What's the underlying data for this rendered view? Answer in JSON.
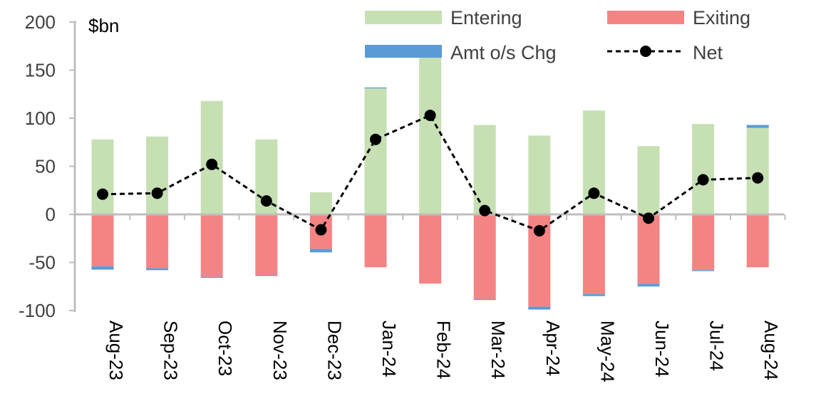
{
  "chart_data": {
    "type": "bar",
    "unit_label": "$bn",
    "ylim": [
      -100,
      200
    ],
    "yticks": [
      -100,
      -50,
      0,
      50,
      100,
      150,
      200
    ],
    "grid": false,
    "legend_position": "top-right",
    "categories": [
      "Aug-23",
      "Sep-23",
      "Oct-23",
      "Nov-23",
      "Dec-23",
      "Jan-24",
      "Feb-24",
      "Mar-24",
      "Apr-24",
      "May-24",
      "Jun-24",
      "Jul-24",
      "Aug-24"
    ],
    "series": [
      {
        "name": "Entering",
        "kind": "bar",
        "color": "#c6e0b4",
        "values": [
          78,
          81,
          118,
          78,
          23,
          131,
          175,
          93,
          82,
          108,
          71,
          94,
          90
        ]
      },
      {
        "name": "Exiting",
        "kind": "bar",
        "color": "#f48484",
        "values": [
          -54,
          -56,
          -65,
          -63,
          -36,
          -55,
          -72,
          -88,
          -96,
          -83,
          -72,
          -58,
          -55
        ]
      },
      {
        "name": "Amt o/s Chg",
        "kind": "bar",
        "color": "#5b9bd5",
        "values": [
          -3.5,
          -2,
          -1,
          -1,
          -3.5,
          1,
          0,
          -1,
          -3,
          -2,
          -3,
          -1,
          3
        ]
      },
      {
        "name": "Net",
        "kind": "line",
        "color": "#000000",
        "values": [
          21,
          22,
          52,
          14,
          -16,
          78,
          103,
          4,
          -17,
          22,
          -4,
          36,
          38
        ]
      }
    ]
  }
}
